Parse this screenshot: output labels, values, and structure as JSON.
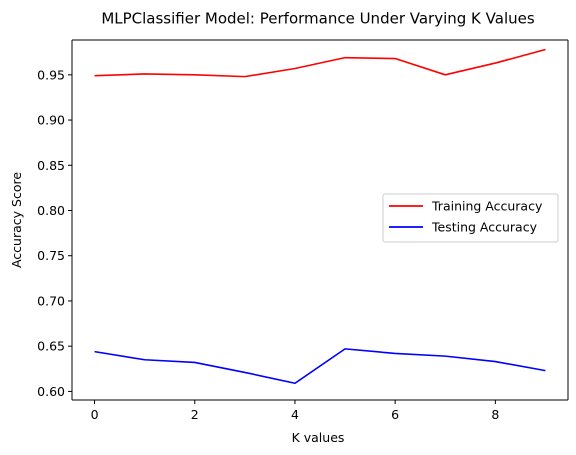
{
  "chart_data": {
    "type": "line",
    "title": "MLPClassifier Model: Performance Under Varying K Values",
    "xlabel": "K values",
    "ylabel": "Accuracy Score",
    "x": [
      0,
      1,
      2,
      3,
      4,
      5,
      6,
      7,
      8,
      9
    ],
    "xlim": [
      -0.45,
      9.45
    ],
    "ylim": [
      0.5905,
      0.9885
    ],
    "xticks": [
      0,
      2,
      4,
      6,
      8
    ],
    "yticks": [
      0.6,
      0.65,
      0.7,
      0.75,
      0.8,
      0.85,
      0.9,
      0.95
    ],
    "xtick_labels": [
      "0",
      "2",
      "4",
      "6",
      "8"
    ],
    "ytick_labels": [
      "0.60",
      "0.65",
      "0.70",
      "0.75",
      "0.80",
      "0.85",
      "0.90",
      "0.95"
    ],
    "grid": false,
    "legend_position": "center-right",
    "series": [
      {
        "name": "Training Accuracy",
        "color": "#ff0000",
        "values": [
          0.949,
          0.951,
          0.95,
          0.948,
          0.957,
          0.969,
          0.968,
          0.95,
          0.963,
          0.978
        ]
      },
      {
        "name": "Testing Accuracy",
        "color": "#0000ff",
        "values": [
          0.644,
          0.635,
          0.632,
          0.621,
          0.609,
          0.647,
          0.642,
          0.639,
          0.633,
          0.623
        ]
      }
    ]
  }
}
